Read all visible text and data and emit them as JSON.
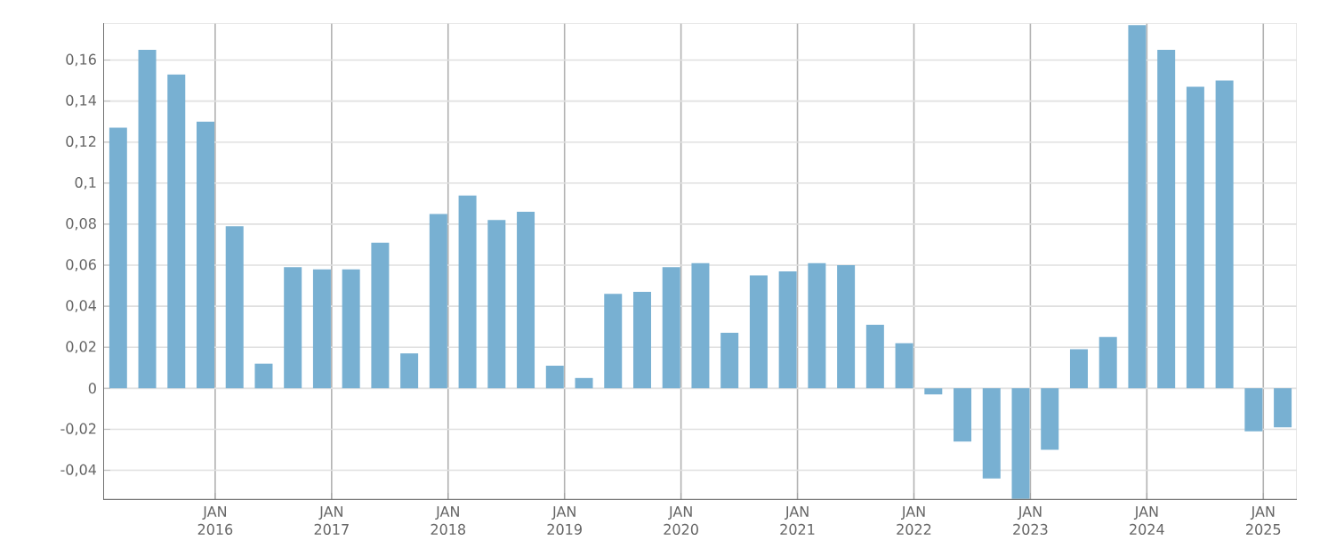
{
  "chart_data": {
    "type": "bar",
    "x": [
      "2015-03",
      "2015-06",
      "2015-09",
      "2015-12",
      "2016-03",
      "2016-06",
      "2016-09",
      "2016-12",
      "2017-03",
      "2017-06",
      "2017-09",
      "2017-12",
      "2018-03",
      "2018-06",
      "2018-09",
      "2018-12",
      "2019-03",
      "2019-06",
      "2019-09",
      "2019-12",
      "2020-03",
      "2020-06",
      "2020-09",
      "2020-12",
      "2021-03",
      "2021-06",
      "2021-09",
      "2021-12",
      "2022-03",
      "2022-06",
      "2022-09",
      "2022-12",
      "2023-03",
      "2023-06",
      "2023-09",
      "2023-12",
      "2024-03",
      "2024-06",
      "2024-09",
      "2024-12",
      "2025-03"
    ],
    "values": [
      0.127,
      0.165,
      0.153,
      0.13,
      0.079,
      0.012,
      0.059,
      0.058,
      0.058,
      0.071,
      0.017,
      0.085,
      0.094,
      0.082,
      0.086,
      0.011,
      0.005,
      0.046,
      0.047,
      0.059,
      0.061,
      0.027,
      0.055,
      0.057,
      0.061,
      0.06,
      0.031,
      0.022,
      -0.003,
      -0.026,
      -0.044,
      -0.054,
      -0.03,
      0.019,
      0.025,
      0.177,
      0.165,
      0.147,
      0.15,
      -0.021,
      -0.019
    ],
    "color": "#78b0d2",
    "xlim": [
      "2015-01-15",
      "2025-04-15"
    ],
    "xticks": [
      {
        "value": "2016-01",
        "label": "JAN 2016"
      },
      {
        "value": "2017-01",
        "label": "JAN 2017"
      },
      {
        "value": "2018-01",
        "label": "JAN 2018"
      },
      {
        "value": "2019-01",
        "label": "JAN 2019"
      },
      {
        "value": "2020-01",
        "label": "JAN 2020"
      },
      {
        "value": "2021-01",
        "label": "JAN 2021"
      },
      {
        "value": "2022-01",
        "label": "JAN 2022"
      },
      {
        "value": "2023-01",
        "label": "JAN 2023"
      },
      {
        "value": "2024-01",
        "label": "JAN 2024"
      },
      {
        "value": "2025-01",
        "label": "JAN 2025"
      }
    ],
    "ylim": [
      -0.0545,
      0.178
    ],
    "yticks": [
      {
        "value": -0.04,
        "label": "-0,04"
      },
      {
        "value": -0.02,
        "label": "-0,02"
      },
      {
        "value": 0,
        "label": "0"
      },
      {
        "value": 0.02,
        "label": "0,02"
      },
      {
        "value": 0.04,
        "label": "0,04"
      },
      {
        "value": 0.06,
        "label": "0,06"
      },
      {
        "value": 0.08,
        "label": "0,08"
      },
      {
        "value": 0.1,
        "label": "0,1"
      },
      {
        "value": 0.12,
        "label": "0,12"
      },
      {
        "value": 0.14,
        "label": "0,14"
      },
      {
        "value": 0.16,
        "label": "0,16"
      }
    ],
    "grid": true
  }
}
